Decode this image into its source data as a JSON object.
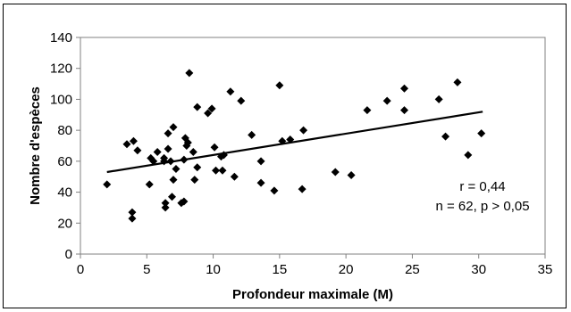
{
  "chart_data": {
    "type": "scatter",
    "xlabel": "Profondeur maximale (M)",
    "ylabel": "Nombre d'espèces",
    "xlim": [
      0,
      35
    ],
    "ylim": [
      0,
      140
    ],
    "x_ticks": [
      "0",
      "5",
      "10",
      "15",
      "20",
      "25",
      "30",
      "35"
    ],
    "y_ticks": [
      "0",
      "20",
      "40",
      "60",
      "80",
      "100",
      "120",
      "140"
    ],
    "grid": false,
    "legend": "none",
    "marker": "diamond",
    "marker_color": "#000000",
    "points": [
      {
        "x": 2.0,
        "y": 45
      },
      {
        "x": 3.5,
        "y": 71
      },
      {
        "x": 3.9,
        "y": 27
      },
      {
        "x": 3.9,
        "y": 23
      },
      {
        "x": 4.0,
        "y": 73
      },
      {
        "x": 4.3,
        "y": 67
      },
      {
        "x": 5.2,
        "y": 45
      },
      {
        "x": 5.3,
        "y": 62
      },
      {
        "x": 5.5,
        "y": 60
      },
      {
        "x": 5.8,
        "y": 66
      },
      {
        "x": 6.3,
        "y": 62
      },
      {
        "x": 6.3,
        "y": 60
      },
      {
        "x": 6.4,
        "y": 33
      },
      {
        "x": 6.4,
        "y": 30
      },
      {
        "x": 6.6,
        "y": 78
      },
      {
        "x": 6.6,
        "y": 68
      },
      {
        "x": 6.8,
        "y": 60
      },
      {
        "x": 6.9,
        "y": 37
      },
      {
        "x": 7.0,
        "y": 82
      },
      {
        "x": 7.0,
        "y": 48
      },
      {
        "x": 7.2,
        "y": 55
      },
      {
        "x": 7.6,
        "y": 33
      },
      {
        "x": 7.8,
        "y": 61
      },
      {
        "x": 7.8,
        "y": 34
      },
      {
        "x": 7.9,
        "y": 75
      },
      {
        "x": 8.0,
        "y": 70
      },
      {
        "x": 8.1,
        "y": 72
      },
      {
        "x": 8.2,
        "y": 117
      },
      {
        "x": 8.5,
        "y": 66
      },
      {
        "x": 8.6,
        "y": 48
      },
      {
        "x": 8.8,
        "y": 56
      },
      {
        "x": 8.8,
        "y": 95
      },
      {
        "x": 9.6,
        "y": 91
      },
      {
        "x": 9.9,
        "y": 94
      },
      {
        "x": 10.1,
        "y": 69
      },
      {
        "x": 10.2,
        "y": 54
      },
      {
        "x": 10.6,
        "y": 63
      },
      {
        "x": 10.7,
        "y": 54
      },
      {
        "x": 10.8,
        "y": 64
      },
      {
        "x": 11.3,
        "y": 105
      },
      {
        "x": 11.6,
        "y": 50
      },
      {
        "x": 12.1,
        "y": 99
      },
      {
        "x": 12.9,
        "y": 77
      },
      {
        "x": 13.6,
        "y": 60
      },
      {
        "x": 13.6,
        "y": 46
      },
      {
        "x": 14.6,
        "y": 41
      },
      {
        "x": 15.0,
        "y": 109
      },
      {
        "x": 15.2,
        "y": 73
      },
      {
        "x": 15.8,
        "y": 74
      },
      {
        "x": 16.7,
        "y": 42
      },
      {
        "x": 16.8,
        "y": 80
      },
      {
        "x": 19.2,
        "y": 53
      },
      {
        "x": 20.4,
        "y": 51
      },
      {
        "x": 21.6,
        "y": 93
      },
      {
        "x": 23.1,
        "y": 99
      },
      {
        "x": 24.4,
        "y": 107
      },
      {
        "x": 24.4,
        "y": 93
      },
      {
        "x": 27.0,
        "y": 100
      },
      {
        "x": 27.5,
        "y": 76
      },
      {
        "x": 28.4,
        "y": 111
      },
      {
        "x": 29.2,
        "y": 64
      },
      {
        "x": 30.2,
        "y": 78
      }
    ],
    "trendline": {
      "x": [
        2.0,
        30.3
      ],
      "y": [
        53,
        92
      ]
    },
    "annotations": [
      "r = 0,44",
      "n = 62, p > 0,05"
    ]
  }
}
